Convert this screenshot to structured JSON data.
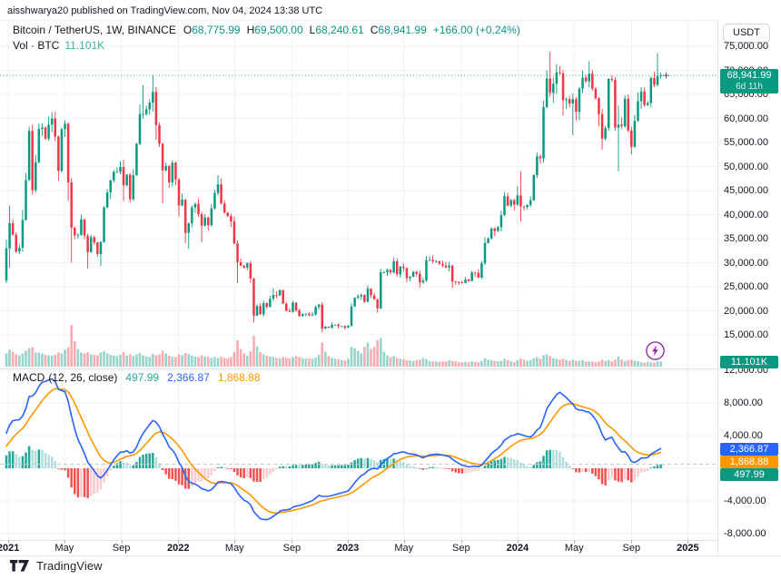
{
  "header": {
    "published_line": "aisshwarya20 published on TradingView.com, Nov 04, 2024 13:38 UTC"
  },
  "legend": {
    "symbol": "Bitcoin / TetherUS, 1W, BINANCE",
    "ohlc": [
      {
        "label": "O",
        "value": "68,775.99"
      },
      {
        "label": "H",
        "value": "69,500.00"
      },
      {
        "label": "L",
        "value": "68,240.61"
      },
      {
        "label": "C",
        "value": "68,941.99"
      }
    ],
    "change": "+166.00 (+0.24%)",
    "volume_label": "Vol · BTC",
    "volume_value": "11.101K"
  },
  "macd_legend": {
    "title": "MACD",
    "params": "(12, 26, close)",
    "values": {
      "hist": "497.99",
      "macd": "2,366.87",
      "signal": "1,868.88"
    }
  },
  "axis": {
    "currency_button": "USDT",
    "price_ticks": [
      {
        "value": 75000,
        "label": "75,000.00"
      },
      {
        "value": 70000,
        "label": "70,000.00"
      },
      {
        "value": 65000,
        "label": "65,000.00"
      },
      {
        "value": 60000,
        "label": "60,000.00"
      },
      {
        "value": 55000,
        "label": "55,000.00"
      },
      {
        "value": 50000,
        "label": "50,000.00"
      },
      {
        "value": 45000,
        "label": "45,000.00"
      },
      {
        "value": 40000,
        "label": "40,000.00"
      },
      {
        "value": 35000,
        "label": "35,000.00"
      },
      {
        "value": 30000,
        "label": "30,000.00"
      },
      {
        "value": 25000,
        "label": "25,000.00"
      },
      {
        "value": 20000,
        "label": "20,000.00"
      },
      {
        "value": 15000,
        "label": "15,000.00"
      }
    ],
    "macd_ticks": [
      {
        "value": 12000,
        "label": "12,000.00"
      },
      {
        "value": 8000,
        "label": "8,000.00"
      },
      {
        "value": 4000,
        "label": "4,000.00"
      },
      {
        "value": 0,
        "label": "0.00"
      },
      {
        "value": -4000,
        "label": "-4,000.00"
      },
      {
        "value": -8000,
        "label": "-8,000.00"
      }
    ],
    "last_price_label": {
      "line1": "68,941.99",
      "line2": "6d 11h",
      "value": 68941.99
    },
    "volume_axis_label": "11.101K",
    "macd_value_labels": [
      {
        "text": "2,366.87",
        "value": 2366.87,
        "bg": "#2962ff"
      },
      {
        "text": "1,868.88",
        "value": 1868.88,
        "bg": "#ff9800"
      },
      {
        "text": "497.99",
        "value": 497.99,
        "bg": "#089981"
      }
    ]
  },
  "time_axis": {
    "labels": [
      {
        "label": "2021",
        "week": 0.6,
        "bold": true
      },
      {
        "label": "May",
        "week": 17.8,
        "bold": false
      },
      {
        "label": "Sep",
        "week": 35.3,
        "bold": false
      },
      {
        "label": "2022",
        "week": 52.8,
        "bold": true
      },
      {
        "label": "May",
        "week": 70.1,
        "bold": false
      },
      {
        "label": "Sep",
        "week": 87.7,
        "bold": false
      },
      {
        "label": "2023",
        "week": 104.9,
        "bold": true
      },
      {
        "label": "May",
        "week": 122.1,
        "bold": false
      },
      {
        "label": "Sep",
        "week": 139.7,
        "bold": false
      },
      {
        "label": "2024",
        "week": 157.0,
        "bold": true
      },
      {
        "label": "May",
        "week": 174.4,
        "bold": false
      },
      {
        "label": "Sep",
        "week": 192.0,
        "bold": false
      },
      {
        "label": "2025",
        "week": 209.3,
        "bold": true
      }
    ]
  },
  "footer": {
    "brand": "TradingView"
  },
  "colors": {
    "up": "#089981",
    "down": "#f23645",
    "vol_up": "rgba(8,153,129,0.42)",
    "vol_down": "rgba(242,54,69,0.42)",
    "macd_line": "#2962ff",
    "signal_line": "#ff9800",
    "hist_pos": "#26a69a",
    "hist_pos_light": "#b2dfdb",
    "hist_neg": "#ef5350",
    "hist_neg_light": "#fccbcd",
    "grid": "#edf0f6",
    "border": "#e0e3eb",
    "price_line": "#089981",
    "flash": "#9c27b0"
  },
  "chart_data": {
    "type": "candlestick+volume+macd",
    "symbol": "BTCUSDT",
    "interval": "1W",
    "exchange": "BINANCE",
    "last_ohlc": {
      "o": 68775.99,
      "h": 69500.0,
      "l": 68240.61,
      "c": 68941.99,
      "change": 166.0,
      "change_pct": 0.24
    },
    "last_price": 68941.99,
    "current_volume_k": 11.101,
    "macd_current": {
      "hist": 497.99,
      "macd": 2366.87,
      "signal": 1868.88
    },
    "macd_params": {
      "fast": 12,
      "slow": 26,
      "signal": 9,
      "source": "close"
    },
    "price_axis_range": [
      9000,
      80500
    ],
    "macd_axis_range": [
      -9500,
      13500
    ],
    "pre_closes_k": [
      9.7,
      9.5,
      9.4,
      9.1,
      9.2,
      9.3,
      11.1,
      11.8,
      11.1,
      11.9,
      11.7,
      11.4,
      10.8,
      10.2,
      10.7,
      10.9,
      11.1,
      11.4,
      11.5,
      13.0,
      13.1,
      13.6,
      15.5,
      18.4,
      18.8,
      19.2,
      18.2,
      19.4,
      23.3,
      24.7,
      26.3
    ],
    "closes_k": [
      33.0,
      38.2,
      35.8,
      32.3,
      33.1,
      38.9,
      47.2,
      57.4,
      45.1,
      50.9,
      57.8,
      58.1,
      55.8,
      58.7,
      60.0,
      56.2,
      49.1,
      57.8,
      58.9,
      46.7,
      37.3,
      35.7,
      35.8,
      39.0,
      35.6,
      32.2,
      35.3,
      34.2,
      31.8,
      34.3,
      41.5,
      44.6,
      47.1,
      48.9,
      48.9,
      49.9,
      46.1,
      48.3,
      43.2,
      48.2,
      54.7,
      60.9,
      60.9,
      61.9,
      63.3,
      65.5,
      58.6,
      54.7,
      49.2,
      50.1,
      46.7,
      50.8,
      47.3,
      41.9,
      43.1,
      36.2,
      38.2,
      41.5,
      42.2,
      40.1,
      37.7,
      39.4,
      37.8,
      41.3,
      44.5,
      46.3,
      42.3,
      40.4,
      39.7,
      38.6,
      34.0,
      30.1,
      29.4,
      29.0,
      29.9,
      26.7,
      19.0,
      21.0,
      19.3,
      21.6,
      20.8,
      22.5,
      23.3,
      23.2,
      24.3,
      21.5,
      20.0,
      19.8,
      21.7,
      20.1,
      18.9,
      19.3,
      19.4,
      19.1,
      19.2,
      20.8,
      21.3,
      16.3,
      16.7,
      16.5,
      17.1,
      17.1,
      16.8,
      16.8,
      16.5,
      16.9,
      20.9,
      22.7,
      23.0,
      23.3,
      21.9,
      24.6,
      23.2,
      22.4,
      20.5,
      28.0,
      28.0,
      28.5,
      28.0,
      30.3,
      27.6,
      29.2,
      28.9,
      26.8,
      27.1,
      28.1,
      27.7,
      25.9,
      26.3,
      30.5,
      30.6,
      30.3,
      30.3,
      29.8,
      29.4,
      29.0,
      29.4,
      26.1,
      26.0,
      25.9,
      25.8,
      26.5,
      26.2,
      28.0,
      27.9,
      26.9,
      29.9,
      34.1,
      35.0,
      37.1,
      36.6,
      37.4,
      39.9,
      43.8,
      41.9,
      43.0,
      42.1,
      44.0,
      41.7,
      41.6,
      42.0,
      43.0,
      48.2,
      52.1,
      51.7,
      62.4,
      68.3,
      65.3,
      67.2,
      69.6,
      69.4,
      63.8,
      64.0,
      63.1,
      64.0,
      61.4,
      66.2,
      68.5,
      67.7,
      69.3,
      66.2,
      64.2,
      60.9,
      55.8,
      58.0,
      68.2,
      68.0,
      58.1,
      58.7,
      58.4,
      64.1,
      57.5,
      54.1,
      59.5,
      63.6,
      65.6,
      62.8,
      63.2,
      68.4,
      67.0,
      68.8,
      68.94
    ],
    "wick_overrides_k": {
      "0": {
        "h": 34.8,
        "l": 25.8
      },
      "1": {
        "h": 41.9,
        "l": 29.0
      },
      "5": {
        "h": 41.0
      },
      "7": {
        "h": 58.3
      },
      "8": {
        "l": 44.2
      },
      "14": {
        "h": 61.3
      },
      "16": {
        "l": 47.0
      },
      "18": {
        "h": 59.6
      },
      "19": {
        "l": 42.9
      },
      "20": {
        "l": 30.0
      },
      "25": {
        "l": 28.8
      },
      "29": {
        "l": 29.3
      },
      "35": {
        "h": 51.1
      },
      "36": {
        "l": 42.8
      },
      "41": {
        "h": 62.9
      },
      "42": {
        "h": 66.9
      },
      "45": {
        "h": 69.0
      },
      "46": {
        "l": 55.6
      },
      "48": {
        "l": 42.3
      },
      "53": {
        "l": 39.6
      },
      "55": {
        "l": 34.0
      },
      "56": {
        "l": 32.9
      },
      "60": {
        "l": 34.3
      },
      "65": {
        "h": 48.2
      },
      "70": {
        "l": 33.8
      },
      "71": {
        "l": 25.8
      },
      "76": {
        "l": 17.6
      },
      "82": {
        "h": 24.7
      },
      "97": {
        "l": 15.5
      },
      "106": {
        "h": 21.6
      },
      "111": {
        "h": 25.3
      },
      "114": {
        "l": 19.6
      },
      "115": {
        "h": 28.7
      },
      "119": {
        "h": 31.1
      },
      "123": {
        "l": 25.9
      },
      "127": {
        "l": 24.8
      },
      "129": {
        "h": 31.4
      },
      "136": {
        "h": 30.2
      },
      "137": {
        "l": 24.8
      },
      "146": {
        "h": 30.4
      },
      "147": {
        "h": 35.3
      },
      "152": {
        "h": 40.8
      },
      "153": {
        "h": 44.7
      },
      "157": {
        "h": 45.9
      },
      "158": {
        "h": 49.0,
        "l": 38.5
      },
      "164": {
        "l": 50.6
      },
      "165": {
        "h": 63.7
      },
      "166": {
        "h": 70.0
      },
      "167": {
        "h": 73.8,
        "l": 64.5
      },
      "169": {
        "h": 71.3
      },
      "171": {
        "l": 60.6
      },
      "174": {
        "l": 56.5
      },
      "177": {
        "h": 70.0
      },
      "179": {
        "h": 71.9
      },
      "182": {
        "l": 58.4
      },
      "183": {
        "l": 53.5
      },
      "185": {
        "h": 68.4
      },
      "188": {
        "l": 49.0,
        "h": 62.7
      },
      "192": {
        "l": 52.5
      },
      "195": {
        "h": 66.5
      },
      "200": {
        "h": 73.6,
        "l": 66.6
      },
      "201": {
        "h": 69.5,
        "l": 68.24
      }
    },
    "volumes_k": [
      30,
      38,
      34,
      28,
      26,
      30,
      36,
      42,
      44,
      32,
      32,
      30,
      27,
      26,
      25,
      27,
      32,
      30,
      38,
      44,
      95,
      58,
      40,
      32,
      30,
      33,
      28,
      27,
      26,
      32,
      35,
      30,
      27,
      25,
      24,
      27,
      33,
      25,
      28,
      24,
      28,
      31,
      26,
      23,
      22,
      29,
      26,
      28,
      36,
      30,
      25,
      23,
      22,
      28,
      26,
      31,
      29,
      25,
      23,
      22,
      26,
      23,
      22,
      20,
      22,
      20,
      22,
      20,
      19,
      22,
      33,
      60,
      40,
      30,
      25,
      35,
      70,
      46,
      33,
      28,
      25,
      23,
      22,
      20,
      19,
      22,
      20,
      19,
      22,
      24,
      22,
      19,
      18,
      19,
      18,
      21,
      27,
      55,
      34,
      24,
      20,
      18,
      17,
      15,
      14,
      18,
      45,
      42,
      36,
      30,
      45,
      55,
      40,
      45,
      60,
      65,
      34,
      26,
      22,
      24,
      20,
      18,
      17,
      15,
      14,
      13,
      15,
      16,
      20,
      17,
      13,
      12,
      12,
      11,
      12,
      12,
      15,
      13,
      12,
      10,
      10,
      11,
      10,
      12,
      11,
      10,
      13,
      19,
      16,
      15,
      13,
      12,
      13,
      18,
      15,
      12,
      10,
      15,
      19,
      16,
      13,
      15,
      19,
      21,
      18,
      26,
      28,
      24,
      19,
      18,
      16,
      18,
      15,
      13,
      16,
      13,
      13,
      15,
      12,
      12,
      12,
      10,
      12,
      16,
      13,
      15,
      12,
      16,
      23,
      16,
      13,
      15,
      16,
      13,
      12,
      10,
      9,
      11,
      10,
      9,
      12,
      11.101
    ]
  }
}
